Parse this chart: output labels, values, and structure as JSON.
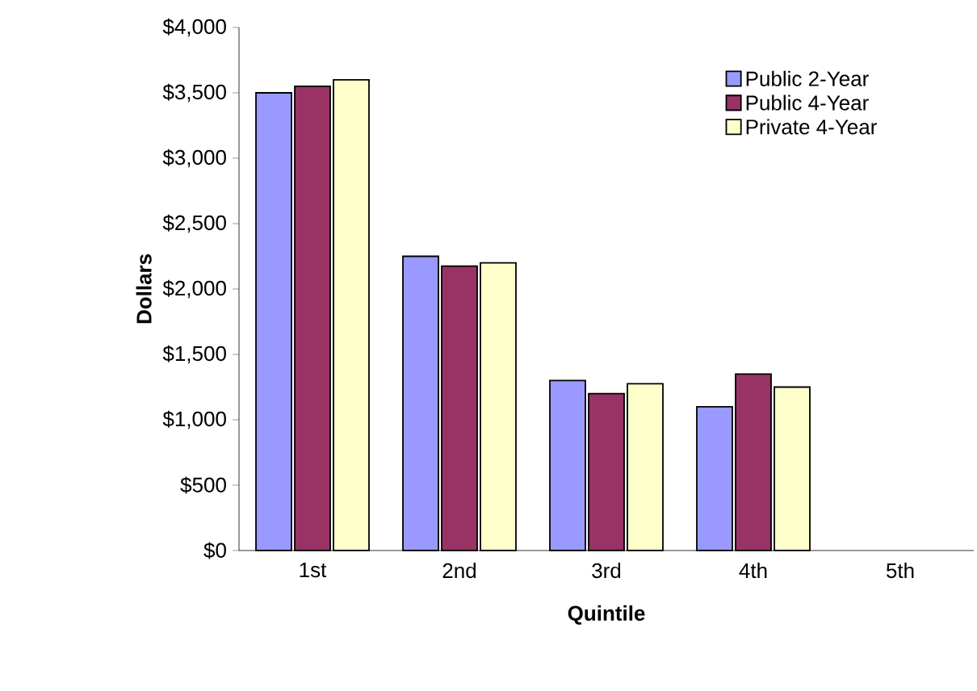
{
  "chart_data": {
    "type": "bar",
    "xlabel": "Quintile",
    "ylabel": "Dollars",
    "categories": [
      "1st",
      "2nd",
      "3rd",
      "4th",
      "5th"
    ],
    "series": [
      {
        "name": "Public 2-Year",
        "color": "#9999ff",
        "values": [
          3500,
          2250,
          1300,
          1100,
          null
        ]
      },
      {
        "name": "Public 4-Year",
        "color": "#993366",
        "values": [
          3550,
          2175,
          1200,
          1350,
          null
        ]
      },
      {
        "name": "Private 4-Year",
        "color": "#ffffcc",
        "values": [
          3600,
          2200,
          1275,
          1250,
          null
        ]
      }
    ],
    "ylim": [
      0,
      4000
    ],
    "yticks": [
      {
        "value": 0,
        "label": "$0"
      },
      {
        "value": 500,
        "label": "$500"
      },
      {
        "value": 1000,
        "label": "$1,000"
      },
      {
        "value": 1500,
        "label": "$1,500"
      },
      {
        "value": 2000,
        "label": "$2,000"
      },
      {
        "value": 2500,
        "label": "$2,500"
      },
      {
        "value": 3000,
        "label": "$3,000"
      },
      {
        "value": 3500,
        "label": "$3,500"
      },
      {
        "value": 4000,
        "label": "$4,000"
      }
    ],
    "legend": "top right"
  }
}
